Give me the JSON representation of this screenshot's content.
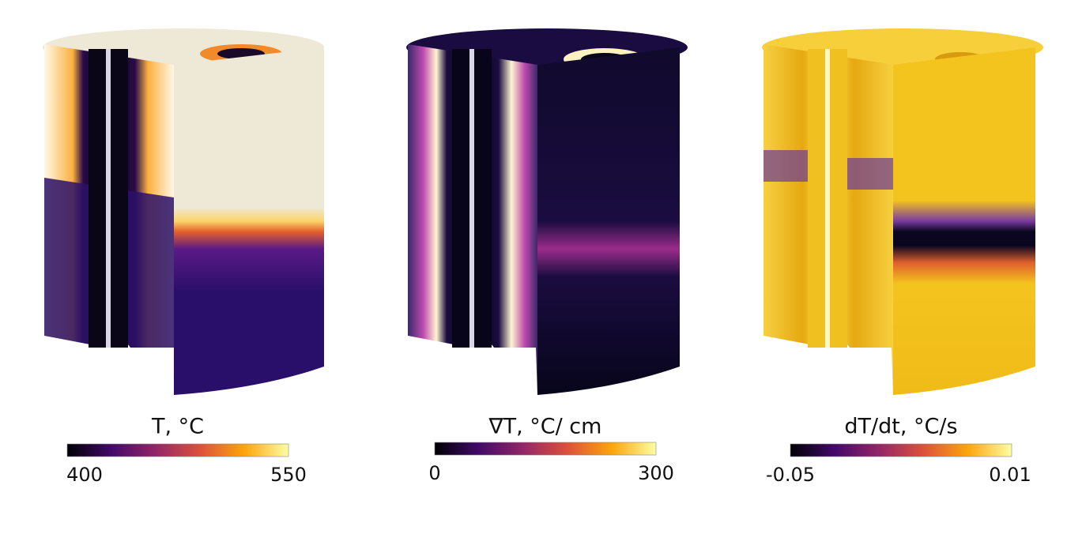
{
  "panels": [
    {
      "label": "T, °C",
      "min": "400",
      "max": "550"
    },
    {
      "label": "∇T, °C/ cm",
      "min": "0",
      "max": "300"
    },
    {
      "label": "dT/dt, °C/s",
      "min": "-0.05",
      "max": "0.01"
    }
  ]
}
